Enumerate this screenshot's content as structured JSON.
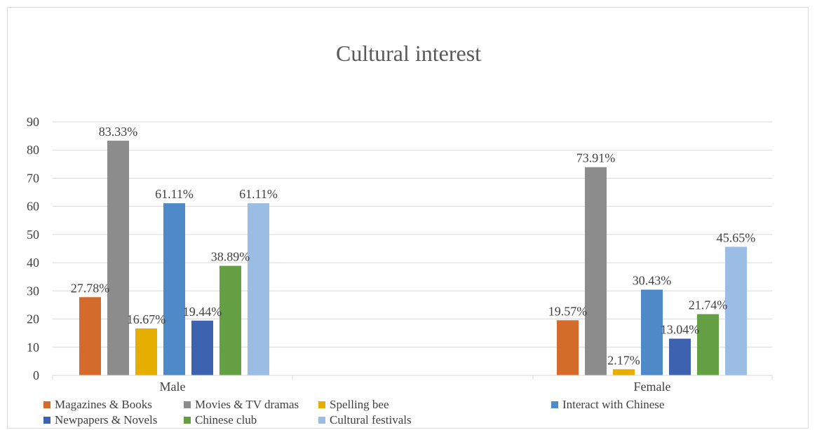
{
  "chart_data": {
    "type": "bar",
    "title": "Cultural interest",
    "xlabel": "",
    "ylabel": "",
    "categories": [
      "Male",
      "Female"
    ],
    "ylim": [
      0,
      90
    ],
    "yticks": [
      0,
      10,
      20,
      30,
      40,
      50,
      60,
      70,
      80,
      90
    ],
    "grid": true,
    "legend_position": "bottom",
    "series": [
      {
        "name": "Magazines & Books",
        "color": "#d46b2a",
        "values": [
          27.78,
          19.57
        ],
        "labels": [
          "27.78%",
          "19.57%"
        ]
      },
      {
        "name": "Movies & TV dramas",
        "color": "#8c8c8c",
        "values": [
          83.33,
          73.91
        ],
        "labels": [
          "83.33%",
          "73.91%"
        ]
      },
      {
        "name": "Spelling bee",
        "color": "#e5ae00",
        "values": [
          16.67,
          2.17
        ],
        "labels": [
          "16.67%",
          "2.17%"
        ]
      },
      {
        "name": "Interact with Chinese",
        "color": "#4e8ac8",
        "values": [
          61.11,
          30.43
        ],
        "labels": [
          "61.11%",
          "30.43%"
        ]
      },
      {
        "name": "Newpapers & Novels",
        "color": "#3d62b0",
        "values": [
          19.44,
          13.04
        ],
        "labels": [
          "19.44%",
          "13.04%"
        ]
      },
      {
        "name": "Chinese club",
        "color": "#64a043",
        "values": [
          38.89,
          21.74
        ],
        "labels": [
          "38.89%",
          "21.74%"
        ]
      },
      {
        "name": "Cultural festivals",
        "color": "#9cbde3",
        "values": [
          61.11,
          45.65
        ],
        "labels": [
          "61.11%",
          "45.65%"
        ]
      }
    ]
  }
}
